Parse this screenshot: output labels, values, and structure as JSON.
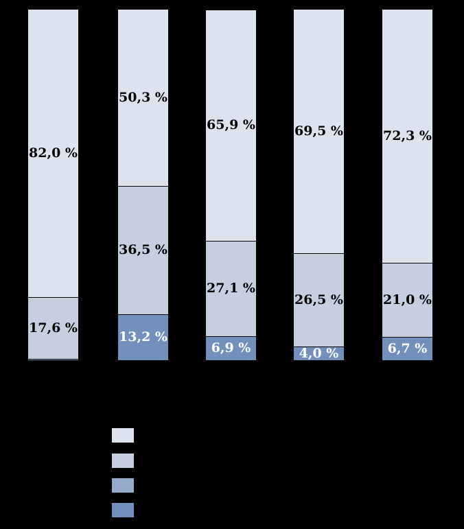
{
  "background_color": "#000000",
  "chart_data": {
    "type": "bar",
    "stacked": true,
    "orientation": "vertical",
    "title": "",
    "xlabel": "",
    "ylabel": "",
    "grid": false,
    "value_format": "comma-decimal percent, e.g. 82,0 %",
    "axis_labels_visible": false,
    "categories": [
      "",
      "",
      "",
      "",
      ""
    ],
    "series": [
      {
        "name": "segment-lightest",
        "color": "#dde3ee",
        "label_color": "#000000",
        "values": [
          82.0,
          50.3,
          65.9,
          69.5,
          72.3
        ],
        "labels": [
          "82,0 %",
          "50,3 %",
          "65,9 %",
          "69,5 %",
          "72,3 %"
        ]
      },
      {
        "name": "segment-light",
        "color": "#c5cfe0",
        "label_color": "#000000",
        "values": [
          17.6,
          36.5,
          27.1,
          26.5,
          21.0
        ],
        "labels": [
          "17,6 %",
          "36,5 %",
          "27,1 %",
          "26,5 %",
          "21,0 %"
        ]
      },
      {
        "name": "segment-medium",
        "color": "#96aacc",
        "label_color": "#ffffff",
        "values": [
          0,
          0,
          0,
          0,
          0
        ],
        "labels": [
          "",
          "",
          "",
          "",
          ""
        ]
      },
      {
        "name": "segment-dark",
        "color": "#7390bd",
        "label_color": "#ffffff",
        "values": [
          0.4,
          13.2,
          6.9,
          4.0,
          6.7
        ],
        "labels": [
          "",
          "13,2 %",
          "6,9 %",
          "4,0 %",
          "6,7 %"
        ]
      }
    ],
    "legend": {
      "position": "bottom-left",
      "labels_visible": false,
      "swatch_colors": [
        "#dde3ee",
        "#c5cfe0",
        "#96aacc",
        "#7390bd"
      ]
    }
  }
}
